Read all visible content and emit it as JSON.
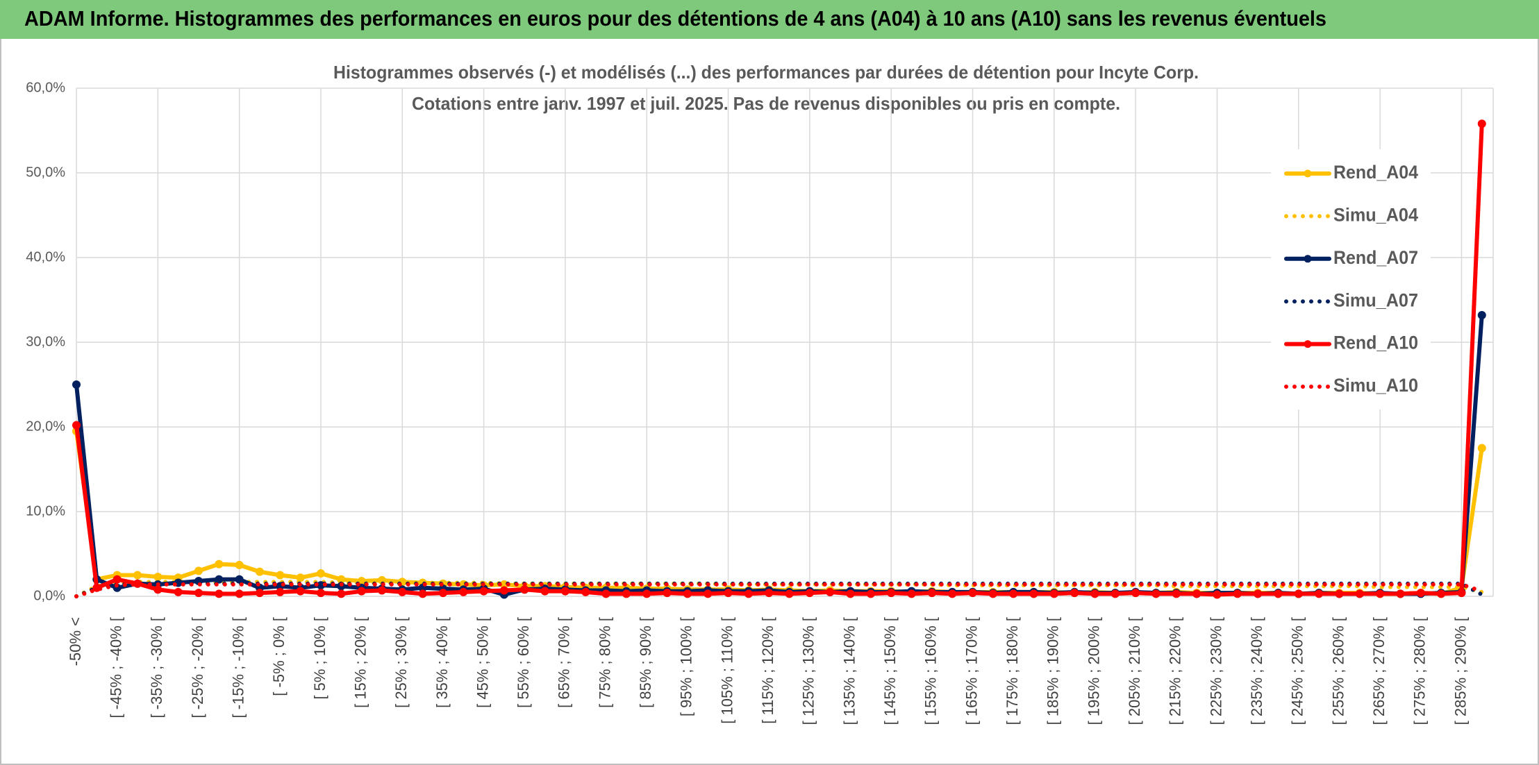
{
  "header": {
    "title": "ADAM Informe. Histogrammes des performances en euros pour des détentions de 4 ans (A04) à 10 ans (A10) sans les revenus éventuels"
  },
  "chart_data": {
    "type": "line",
    "title": "Histogrammes observés (-) et modélisés (...) des performances par durées de détention pour Incyte Corp.",
    "subtitle": "Cotations entre janv. 1997 et juil. 2025. Pas de revenus disponibles ou pris en compte.",
    "categories": [
      "-50% <",
      null,
      "[ -45% ; -40% [",
      null,
      "[ -35% ; -30% [",
      null,
      "[ -25% ; -20% [",
      null,
      "[ -15% ; -10% [",
      null,
      "[ -5% ; 0% [",
      null,
      "[ 5% ; 10% [",
      null,
      "[ 15% ; 20% [",
      null,
      "[ 25% ; 30% [",
      null,
      "[ 35% ; 40% [",
      null,
      "[ 45% ; 50% [",
      null,
      "[ 55% ; 60% [",
      null,
      "[ 65% ; 70% [",
      null,
      "[ 75% ; 80% [",
      null,
      "[ 85% ; 90% [",
      null,
      "[ 95% ; 100% [",
      null,
      "[ 105% ; 110% [",
      null,
      "[ 115% ; 120% [",
      null,
      "[ 125% ; 130% [",
      null,
      "[ 135% ; 140% [",
      null,
      "[ 145% ; 150% [",
      null,
      "[ 155% ; 160% [",
      null,
      "[ 165% ; 170% [",
      null,
      "[ 175% ; 180% [",
      null,
      "[ 185% ; 190% [",
      null,
      "[ 195% ; 200% [",
      null,
      "[ 205% ; 210% [",
      null,
      "[ 215% ; 220% [",
      null,
      "[ 225% ; 230% [",
      null,
      "[ 235% ; 240% [",
      null,
      "[ 245% ; 250% [",
      null,
      "[ 255% ; 260% [",
      null,
      "[ 265% ; 270% [",
      null,
      "[ 275% ; 280% [",
      null,
      "[ 285% ; 290% [",
      null
    ],
    "series": [
      {
        "name": "Rend_A04",
        "color": "#FFC000",
        "line_style": "solid",
        "markers": true,
        "values": [
          19.5,
          2.0,
          2.5,
          2.5,
          2.3,
          2.2,
          3.0,
          3.8,
          3.7,
          2.9,
          2.5,
          2.2,
          2.7,
          2.0,
          1.8,
          1.9,
          1.7,
          1.6,
          1.5,
          1.4,
          1.3,
          1.4,
          1.2,
          1.2,
          1.1,
          1.0,
          1.0,
          1.0,
          0.9,
          0.9,
          0.8,
          0.8,
          0.8,
          0.7,
          0.8,
          0.7,
          0.6,
          0.7,
          0.6,
          0.6,
          0.6,
          0.5,
          0.6,
          0.5,
          0.5,
          0.5,
          0.5,
          0.5,
          0.5,
          0.4,
          0.5,
          0.4,
          0.4,
          0.4,
          0.5,
          0.4,
          0.4,
          0.4,
          0.4,
          0.4,
          0.3,
          0.4,
          0.4,
          0.4,
          0.3,
          0.3,
          0.4,
          0.3,
          1.0,
          17.5
        ]
      },
      {
        "name": "Simu_A04",
        "color": "#FFC000",
        "line_style": "dotted",
        "markers": false,
        "values": [
          0.0,
          1.2,
          1.6,
          1.7,
          1.7,
          1.7,
          1.7,
          1.7,
          1.7,
          1.7,
          1.7,
          1.7,
          1.7,
          1.6,
          1.6,
          1.6,
          1.6,
          1.6,
          1.6,
          1.6,
          1.6,
          1.5,
          1.5,
          1.5,
          1.5,
          1.5,
          1.5,
          1.5,
          1.5,
          1.5,
          1.5,
          1.5,
          1.4,
          1.4,
          1.4,
          1.4,
          1.4,
          1.4,
          1.4,
          1.4,
          1.4,
          1.4,
          1.4,
          1.3,
          1.3,
          1.3,
          1.3,
          1.3,
          1.3,
          1.3,
          1.3,
          1.3,
          1.3,
          1.3,
          1.2,
          1.2,
          1.2,
          1.2,
          1.2,
          1.2,
          1.2,
          1.2,
          1.2,
          1.2,
          1.1,
          1.1,
          1.1,
          1.1,
          1.1,
          0.5
        ]
      },
      {
        "name": "Rend_A07",
        "color": "#002060",
        "line_style": "solid",
        "markers": true,
        "values": [
          25.0,
          2.0,
          1.0,
          1.5,
          1.4,
          1.6,
          1.8,
          2.0,
          2.0,
          1.0,
          1.2,
          1.0,
          1.3,
          1.2,
          1.0,
          0.9,
          0.8,
          1.0,
          0.9,
          0.8,
          0.9,
          0.2,
          0.8,
          0.9,
          0.8,
          0.7,
          0.7,
          0.6,
          0.7,
          0.6,
          0.6,
          0.7,
          0.6,
          0.6,
          0.7,
          0.5,
          0.6,
          0.5,
          0.6,
          0.5,
          0.5,
          0.6,
          0.5,
          0.5,
          0.5,
          0.4,
          0.5,
          0.5,
          0.4,
          0.5,
          0.4,
          0.4,
          0.5,
          0.4,
          0.4,
          0.3,
          0.4,
          0.4,
          0.3,
          0.4,
          0.3,
          0.4,
          0.3,
          0.3,
          0.4,
          0.3,
          0.3,
          0.4,
          0.5,
          33.2
        ]
      },
      {
        "name": "Simu_A07",
        "color": "#002060",
        "line_style": "dotted",
        "markers": false,
        "values": [
          0.0,
          1.0,
          1.4,
          1.5,
          1.5,
          1.5,
          1.5,
          1.5,
          1.5,
          1.5,
          1.5,
          1.5,
          1.5,
          1.5,
          1.5,
          1.5,
          1.5,
          1.5,
          1.5,
          1.5,
          1.5,
          1.5,
          1.5,
          1.5,
          1.5,
          1.5,
          1.5,
          1.5,
          1.5,
          1.5,
          1.5,
          1.5,
          1.5,
          1.5,
          1.5,
          1.5,
          1.5,
          1.5,
          1.5,
          1.5,
          1.5,
          1.5,
          1.5,
          1.5,
          1.5,
          1.5,
          1.5,
          1.5,
          1.5,
          1.5,
          1.5,
          1.5,
          1.5,
          1.5,
          1.5,
          1.5,
          1.5,
          1.5,
          1.5,
          1.5,
          1.5,
          1.5,
          1.5,
          1.5,
          1.5,
          1.5,
          1.5,
          1.5,
          1.5,
          0.2
        ]
      },
      {
        "name": "Rend_A10",
        "color": "#FF0000",
        "line_style": "solid",
        "markers": true,
        "values": [
          20.2,
          1.0,
          2.0,
          1.5,
          0.8,
          0.5,
          0.4,
          0.3,
          0.3,
          0.4,
          0.5,
          0.6,
          0.4,
          0.3,
          0.6,
          0.7,
          0.5,
          0.3,
          0.4,
          0.5,
          0.6,
          0.7,
          0.8,
          0.6,
          0.6,
          0.5,
          0.3,
          0.3,
          0.3,
          0.4,
          0.3,
          0.3,
          0.4,
          0.3,
          0.4,
          0.3,
          0.4,
          0.5,
          0.3,
          0.3,
          0.4,
          0.3,
          0.4,
          0.3,
          0.4,
          0.3,
          0.3,
          0.3,
          0.3,
          0.4,
          0.3,
          0.3,
          0.4,
          0.3,
          0.3,
          0.3,
          0.2,
          0.3,
          0.3,
          0.3,
          0.3,
          0.3,
          0.3,
          0.3,
          0.3,
          0.3,
          0.4,
          0.3,
          0.4,
          55.8
        ]
      },
      {
        "name": "Simu_A10",
        "color": "#FF0000",
        "line_style": "dotted",
        "markers": false,
        "values": [
          0.0,
          0.8,
          1.3,
          1.4,
          1.4,
          1.4,
          1.4,
          1.4,
          1.4,
          1.4,
          1.4,
          1.4,
          1.4,
          1.4,
          1.4,
          1.4,
          1.4,
          1.4,
          1.4,
          1.4,
          1.4,
          1.4,
          1.4,
          1.4,
          1.4,
          1.4,
          1.4,
          1.4,
          1.4,
          1.4,
          1.4,
          1.4,
          1.4,
          1.4,
          1.4,
          1.4,
          1.4,
          1.4,
          1.4,
          1.4,
          1.4,
          1.4,
          1.4,
          1.4,
          1.4,
          1.4,
          1.4,
          1.4,
          1.4,
          1.4,
          1.4,
          1.4,
          1.4,
          1.4,
          1.4,
          1.4,
          1.4,
          1.4,
          1.4,
          1.4,
          1.4,
          1.4,
          1.4,
          1.4,
          1.4,
          1.4,
          1.4,
          1.4,
          1.4,
          0.6
        ]
      }
    ],
    "ylim": [
      0,
      60
    ],
    "yticks": [
      {
        "value": 0,
        "label": "0,0%"
      },
      {
        "value": 10,
        "label": "10,0%"
      },
      {
        "value": 20,
        "label": "20,0%"
      },
      {
        "value": 30,
        "label": "30,0%"
      },
      {
        "value": 40,
        "label": "40,0%"
      },
      {
        "value": 50,
        "label": "50,0%"
      },
      {
        "value": 60,
        "label": "60,0%"
      }
    ],
    "grid": true,
    "legend": "right"
  }
}
